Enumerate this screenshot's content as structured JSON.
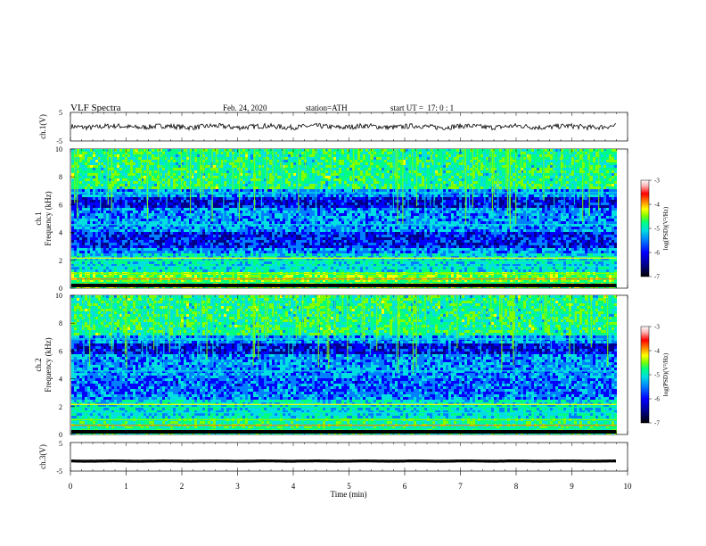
{
  "header": {
    "title": "VLF Spectra",
    "date": "Feb. 24, 2020",
    "station": "station=ATH",
    "start_ut": "start UT =  17: 0 : 1"
  },
  "chart_data": [
    {
      "id": "ch1-waveform",
      "type": "line",
      "ylabel": "ch.1(V)",
      "ylim": [
        -5,
        5
      ],
      "yticks": [
        "5",
        "-5"
      ],
      "xlim": [
        0,
        10
      ],
      "x_extent": [
        0,
        9.8
      ],
      "baseline": 0,
      "amplitude": 0.9
    },
    {
      "id": "ch1-spectrogram",
      "type": "heatmap",
      "ylabel": "ch.1\nFrequency (kHz)",
      "ylim": [
        0,
        10
      ],
      "yticks": [
        "0",
        "2",
        "4",
        "6",
        "8",
        "10"
      ],
      "xlim": [
        0,
        10
      ],
      "x_extent": [
        0,
        9.8
      ],
      "colorbar": {
        "label": "log(PSD)(V²/Hz)",
        "ticks": [
          "-3",
          "-4",
          "-5",
          "-6",
          "-7"
        ],
        "range": [
          -7,
          -3
        ]
      }
    },
    {
      "id": "ch2-spectrogram",
      "type": "heatmap",
      "ylabel": "ch.2\nFrequency (kHz)",
      "ylim": [
        0,
        10
      ],
      "yticks": [
        "0",
        "2",
        "4",
        "6",
        "8",
        "10"
      ],
      "xlim": [
        0,
        10
      ],
      "x_extent": [
        0,
        9.8
      ],
      "colorbar": {
        "label": "log(PSD)(V²/Hz)",
        "ticks": [
          "-3",
          "-4",
          "-5",
          "-6",
          "-7"
        ],
        "range": [
          -7,
          -3
        ]
      }
    },
    {
      "id": "ch3-waveform",
      "type": "line",
      "ylabel": "ch.3(V)",
      "ylim": [
        -5,
        5
      ],
      "yticks": [
        "5",
        "-5"
      ],
      "xlim": [
        0,
        10
      ],
      "x_extent": [
        0,
        9.8
      ],
      "baseline": -1.5,
      "amplitude": 0.15,
      "xlabel": "Time (min)",
      "xticks": [
        "0",
        "1",
        "2",
        "3",
        "4",
        "5",
        "6",
        "7",
        "8",
        "9",
        "10"
      ]
    }
  ],
  "colors": {
    "colormap": [
      "#000000",
      "#00008b",
      "#0000ff",
      "#0080ff",
      "#00e0e0",
      "#00ff80",
      "#80ff00",
      "#ffff00",
      "#ff8000",
      "#ff0000",
      "#ffb0b0",
      "#ffffff"
    ]
  }
}
